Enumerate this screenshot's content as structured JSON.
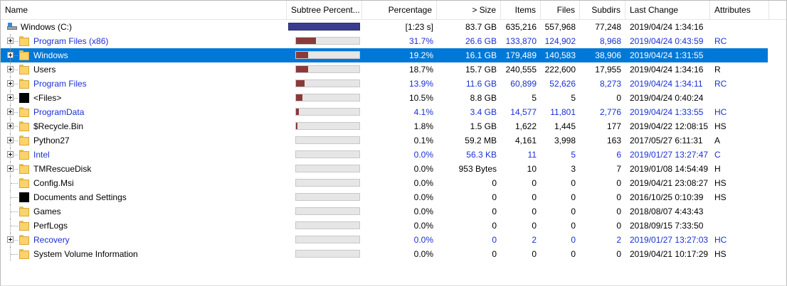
{
  "headers": {
    "name": "Name",
    "subtree": "Subtree Percent...",
    "percentage": "Percentage",
    "size": "> Size",
    "items": "Items",
    "files": "Files",
    "subdirs": "Subdirs",
    "last_change": "Last Change",
    "attributes": "Attributes"
  },
  "colors": {
    "selection": "#0078d7",
    "link_text": "#1a2fd4",
    "bar_fill": "#8b3a3a",
    "root_bar": "#3a3d8f"
  },
  "rows": [
    {
      "name": "Windows (C:)",
      "icon": "drive-icon",
      "expander": false,
      "subtree_fill": 1.0,
      "percentage": "[1:23 s]",
      "size": "83.7 GB",
      "items": "635,216",
      "files": "557,968",
      "subdirs": "77,248",
      "last_change": "2019/04/24  1:34:16",
      "attributes": "",
      "style": "root"
    },
    {
      "name": "Program Files (x86)",
      "icon": "folder-icon",
      "expander": true,
      "subtree_fill": 0.317,
      "percentage": "31.7%",
      "size": "26.6 GB",
      "items": "133,870",
      "files": "124,902",
      "subdirs": "8,968",
      "last_change": "2019/04/24  0:43:59",
      "attributes": "RC",
      "style": "blue"
    },
    {
      "name": "Windows",
      "icon": "folder-icon",
      "expander": true,
      "subtree_fill": 0.192,
      "percentage": "19.2%",
      "size": "16.1 GB",
      "items": "179,489",
      "files": "140,583",
      "subdirs": "38,906",
      "last_change": "2019/04/24  1:31:55",
      "attributes": "",
      "style": "selected"
    },
    {
      "name": "Users",
      "icon": "folder-icon",
      "expander": true,
      "subtree_fill": 0.187,
      "percentage": "18.7%",
      "size": "15.7 GB",
      "items": "240,555",
      "files": "222,600",
      "subdirs": "17,955",
      "last_change": "2019/04/24  1:34:16",
      "attributes": "R",
      "style": "normal"
    },
    {
      "name": "Program Files",
      "icon": "folder-icon",
      "expander": true,
      "subtree_fill": 0.139,
      "percentage": "13.9%",
      "size": "11.6 GB",
      "items": "60,899",
      "files": "52,626",
      "subdirs": "8,273",
      "last_change": "2019/04/24  1:34:11",
      "attributes": "RC",
      "style": "blue"
    },
    {
      "name": "<Files>",
      "icon": "files-icon",
      "expander": true,
      "subtree_fill": 0.105,
      "percentage": "10.5%",
      "size": "8.8 GB",
      "items": "5",
      "files": "5",
      "subdirs": "0",
      "last_change": "2019/04/24  0:40:24",
      "attributes": "",
      "style": "normal"
    },
    {
      "name": "ProgramData",
      "icon": "folder-icon",
      "expander": true,
      "subtree_fill": 0.041,
      "percentage": "4.1%",
      "size": "3.4 GB",
      "items": "14,577",
      "files": "11,801",
      "subdirs": "2,776",
      "last_change": "2019/04/24  1:33:55",
      "attributes": "HC",
      "style": "blue"
    },
    {
      "name": "$Recycle.Bin",
      "icon": "folder-icon",
      "expander": true,
      "subtree_fill": 0.018,
      "percentage": "1.8%",
      "size": "1.5 GB",
      "items": "1,622",
      "files": "1,445",
      "subdirs": "177",
      "last_change": "2019/04/22  12:08:15",
      "attributes": "HS",
      "style": "normal"
    },
    {
      "name": "Python27",
      "icon": "folder-icon",
      "expander": true,
      "subtree_fill": 0.001,
      "percentage": "0.1%",
      "size": "59.2 MB",
      "items": "4,161",
      "files": "3,998",
      "subdirs": "163",
      "last_change": "2017/05/27  6:11:31",
      "attributes": "A",
      "style": "normal"
    },
    {
      "name": "Intel",
      "icon": "folder-icon",
      "expander": true,
      "subtree_fill": 0.0,
      "percentage": "0.0%",
      "size": "56.3 KB",
      "items": "11",
      "files": "5",
      "subdirs": "6",
      "last_change": "2019/01/27  13:27:47",
      "attributes": "C",
      "style": "blue"
    },
    {
      "name": "TMRescueDisk",
      "icon": "folder-icon",
      "expander": true,
      "subtree_fill": 0.0,
      "percentage": "0.0%",
      "size": "953 Bytes",
      "items": "10",
      "files": "3",
      "subdirs": "7",
      "last_change": "2019/01/08  14:54:49",
      "attributes": "H",
      "style": "normal"
    },
    {
      "name": "Config.Msi",
      "icon": "folder-icon",
      "expander": false,
      "subtree_fill": 0.0,
      "percentage": "0.0%",
      "size": "0",
      "items": "0",
      "files": "0",
      "subdirs": "0",
      "last_change": "2019/04/21  23:08:27",
      "attributes": "HS",
      "style": "normal"
    },
    {
      "name": "Documents and Settings",
      "icon": "junction-icon",
      "expander": false,
      "subtree_fill": 0.0,
      "percentage": "0.0%",
      "size": "0",
      "items": "0",
      "files": "0",
      "subdirs": "0",
      "last_change": "2016/10/25  0:10:39",
      "attributes": "HS",
      "style": "normal"
    },
    {
      "name": "Games",
      "icon": "folder-icon",
      "expander": false,
      "subtree_fill": 0.0,
      "percentage": "0.0%",
      "size": "0",
      "items": "0",
      "files": "0",
      "subdirs": "0",
      "last_change": "2018/08/07  4:43:43",
      "attributes": "",
      "style": "normal"
    },
    {
      "name": "PerfLogs",
      "icon": "folder-icon",
      "expander": false,
      "subtree_fill": 0.0,
      "percentage": "0.0%",
      "size": "0",
      "items": "0",
      "files": "0",
      "subdirs": "0",
      "last_change": "2018/09/15  7:33:50",
      "attributes": "",
      "style": "normal"
    },
    {
      "name": "Recovery",
      "icon": "folder-icon",
      "expander": true,
      "subtree_fill": 0.0,
      "percentage": "0.0%",
      "size": "0",
      "items": "2",
      "files": "0",
      "subdirs": "2",
      "last_change": "2019/01/27  13:27:03",
      "attributes": "HC",
      "style": "blue"
    },
    {
      "name": "System Volume Information",
      "icon": "folder-icon",
      "expander": false,
      "subtree_fill": 0.0,
      "percentage": "0.0%",
      "size": "0",
      "items": "0",
      "files": "0",
      "subdirs": "0",
      "last_change": "2019/04/21  10:17:29",
      "attributes": "HS",
      "style": "normal"
    }
  ]
}
